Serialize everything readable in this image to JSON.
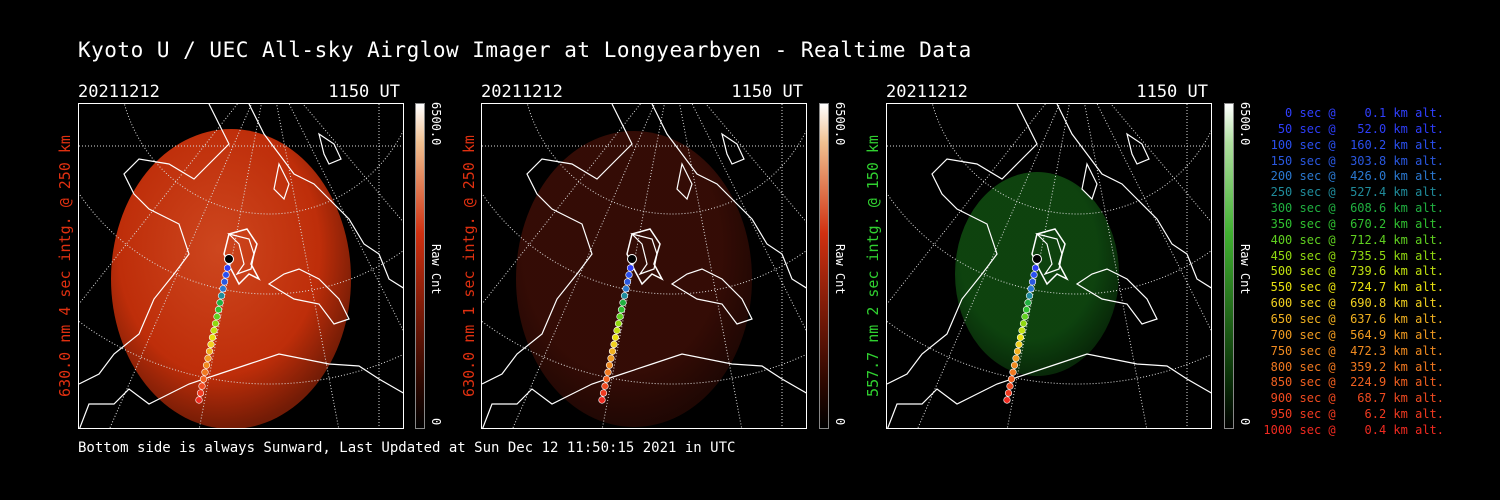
{
  "header": {
    "title": "Kyoto U / UEC All-sky Airglow Imager at Longyearbyen - Realtime Data"
  },
  "panels": [
    {
      "date": "20211212",
      "time": "1150 UT",
      "side_label": "630.0 nm 4 sec intg. @ 250 km",
      "label_color": "#e03010",
      "cbar_max": "6500.0",
      "cbar_min": "0",
      "cbar_label": "Raw Cnt",
      "glow": "#c8300a",
      "glow_strength": 0.95
    },
    {
      "date": "20211212",
      "time": "1150 UT",
      "side_label": "630.0 nm 1 sec intg. @ 250 km",
      "label_color": "#e03010",
      "cbar_max": "6500.0",
      "cbar_min": "0",
      "cbar_label": "Raw Cnt",
      "glow": "#3a0d06",
      "glow_strength": 0.9
    },
    {
      "date": "20211212",
      "time": "1150 UT",
      "side_label": "557.7 nm 2 sec intg. @ 150 km",
      "label_color": "#30d030",
      "cbar_max": "6500.0",
      "cbar_min": "0",
      "cbar_label": "Raw Cnt",
      "glow": "#0f4a10",
      "glow_strength": 0.9
    }
  ],
  "legend": [
    {
      "text": "   0 sec @    0.1 km alt.",
      "color": "#3040ff"
    },
    {
      "text": "  50 sec @   52.0 km alt.",
      "color": "#2d3df8"
    },
    {
      "text": " 100 sec @  160.2 km alt.",
      "color": "#2a50f0"
    },
    {
      "text": " 150 sec @  303.8 km alt.",
      "color": "#2a58e0"
    },
    {
      "text": " 200 sec @  426.0 km alt.",
      "color": "#2a78d0"
    },
    {
      "text": " 250 sec @  527.4 km alt.",
      "color": "#208c9c"
    },
    {
      "text": " 300 sec @  608.6 km alt.",
      "color": "#20b040"
    },
    {
      "text": " 350 sec @  670.2 km alt.",
      "color": "#30c030"
    },
    {
      "text": " 400 sec @  712.4 km alt.",
      "color": "#60d020"
    },
    {
      "text": " 450 sec @  735.5 km alt.",
      "color": "#90d810"
    },
    {
      "text": " 500 sec @  739.6 km alt.",
      "color": "#c0e010"
    },
    {
      "text": " 550 sec @  724.7 km alt.",
      "color": "#e8e010"
    },
    {
      "text": " 600 sec @  690.8 km alt.",
      "color": "#f0d020"
    },
    {
      "text": " 650 sec @  637.6 km alt.",
      "color": "#f0b020"
    },
    {
      "text": " 700 sec @  564.9 km alt.",
      "color": "#f09a20"
    },
    {
      "text": " 750 sec @  472.3 km alt.",
      "color": "#f08a20"
    },
    {
      "text": " 800 sec @  359.2 km alt.",
      "color": "#f07820"
    },
    {
      "text": " 850 sec @  224.9 km alt.",
      "color": "#f06020"
    },
    {
      "text": " 900 sec @   68.7 km alt.",
      "color": "#f04a20"
    },
    {
      "text": " 950 sec @    6.2 km alt.",
      "color": "#f03a20"
    },
    {
      "text": "1000 sec @    0.4 km alt.",
      "color": "#f02a20"
    }
  ],
  "footer": {
    "text": "Bottom side is always Sunward, Last Updated at Sun Dec 12 11:50:15 2021 in UTC"
  }
}
